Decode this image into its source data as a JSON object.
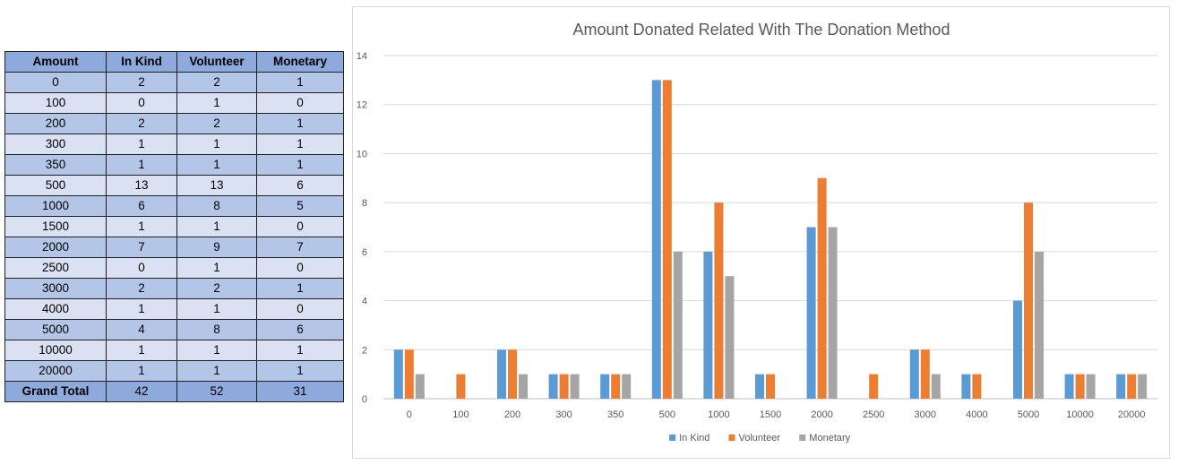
{
  "table": {
    "headers": [
      "Amount",
      "In Kind",
      "Volunteer",
      "Monetary"
    ],
    "rows": [
      [
        "0",
        "2",
        "2",
        "1"
      ],
      [
        "100",
        "0",
        "1",
        "0"
      ],
      [
        "200",
        "2",
        "2",
        "1"
      ],
      [
        "300",
        "1",
        "1",
        "1"
      ],
      [
        "350",
        "1",
        "1",
        "1"
      ],
      [
        "500",
        "13",
        "13",
        "6"
      ],
      [
        "1000",
        "6",
        "8",
        "5"
      ],
      [
        "1500",
        "1",
        "1",
        "0"
      ],
      [
        "2000",
        "7",
        "9",
        "7"
      ],
      [
        "2500",
        "0",
        "1",
        "0"
      ],
      [
        "3000",
        "2",
        "2",
        "1"
      ],
      [
        "4000",
        "1",
        "1",
        "0"
      ],
      [
        "5000",
        "4",
        "8",
        "6"
      ],
      [
        "10000",
        "1",
        "1",
        "1"
      ],
      [
        "20000",
        "1",
        "1",
        "1"
      ]
    ],
    "total": [
      "Grand Total",
      "42",
      "52",
      "31"
    ]
  },
  "chart_data": {
    "type": "bar",
    "title": "Amount Donated Related With The Donation Method",
    "xlabel": "",
    "ylabel": "",
    "categories": [
      "0",
      "100",
      "200",
      "300",
      "350",
      "500",
      "1000",
      "1500",
      "2000",
      "2500",
      "3000",
      "4000",
      "5000",
      "10000",
      "20000"
    ],
    "series": [
      {
        "name": "In Kind",
        "color": "#5b9bd5",
        "values": [
          2,
          0,
          2,
          1,
          1,
          13,
          6,
          1,
          7,
          0,
          2,
          1,
          4,
          1,
          1
        ]
      },
      {
        "name": "Volunteer",
        "color": "#ed7d31",
        "values": [
          2,
          1,
          2,
          1,
          1,
          13,
          8,
          1,
          9,
          1,
          2,
          1,
          8,
          1,
          1
        ]
      },
      {
        "name": "Monetary",
        "color": "#a5a5a5",
        "values": [
          1,
          0,
          1,
          1,
          1,
          6,
          5,
          0,
          7,
          0,
          1,
          0,
          6,
          1,
          1
        ]
      }
    ],
    "ylim": [
      0,
      14
    ],
    "yticks": [
      0,
      2,
      4,
      6,
      8,
      10,
      12,
      14
    ],
    "grid": true,
    "legend_position": "bottom"
  }
}
